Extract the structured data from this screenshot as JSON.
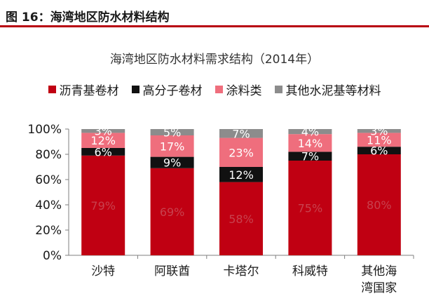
{
  "figure": {
    "caption": "图 16：海湾地区防水材料结构"
  },
  "chart_data": {
    "type": "bar",
    "stacked": true,
    "title": "海湾地区防水材料需求结构（2014年）",
    "xlabel": "",
    "ylabel": "",
    "ylim": [
      0,
      100
    ],
    "yticks": [
      "0%",
      "20%",
      "40%",
      "60%",
      "80%",
      "100%"
    ],
    "categories": [
      [
        "沙特"
      ],
      [
        "阿联酋"
      ],
      [
        "卡塔尔"
      ],
      [
        "科威特"
      ],
      [
        "其他海",
        "湾国家"
      ]
    ],
    "legend_position": "top",
    "grid": false,
    "series": [
      {
        "name": "沥青基卷材",
        "color": "#c00012",
        "label_color": "#c8414e",
        "values": [
          79,
          69,
          58,
          75,
          80
        ],
        "labels": [
          "79%",
          "69%",
          "58%",
          "75%",
          "80%"
        ]
      },
      {
        "name": "高分子卷材",
        "color": "#111111",
        "label_color": "#ffffff",
        "values": [
          6,
          9,
          12,
          7,
          6
        ],
        "labels": [
          "6%",
          "9%",
          "12%",
          "7%",
          "6%"
        ]
      },
      {
        "name": "涂料类",
        "color": "#ef6e7d",
        "label_color": "#ffffff",
        "values": [
          12,
          17,
          23,
          14,
          11
        ],
        "labels": [
          "12%",
          "17%",
          "23%",
          "14%",
          "11%"
        ]
      },
      {
        "name": "其他水泥基等材料",
        "color": "#8c8c8c",
        "label_color": "#ffffff",
        "values": [
          3,
          5,
          7,
          4,
          3
        ],
        "labels": [
          "3%",
          "5%",
          "7%",
          "4%",
          "3%"
        ]
      }
    ]
  }
}
